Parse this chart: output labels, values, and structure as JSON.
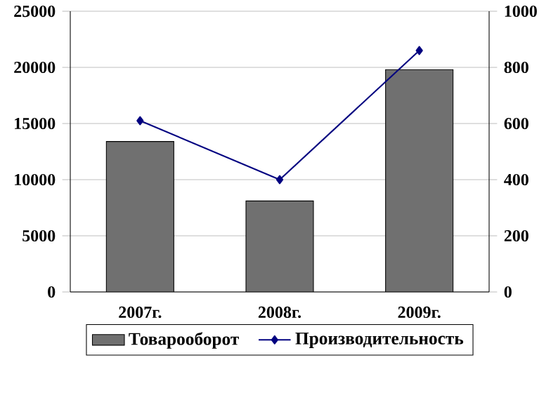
{
  "chart_data": {
    "type": "bar",
    "categories": [
      "2007г.",
      "2008г.",
      "2009г."
    ],
    "series": [
      {
        "name": "Товарооборот",
        "color": "#707070",
        "values": [
          13400,
          8100,
          19800
        ]
      },
      {
        "name": "Производительность",
        "type": "line",
        "axis": "y2",
        "color": "#000080",
        "marker": "diamond",
        "values": [
          610,
          400,
          860
        ]
      }
    ],
    "ylim": [
      0,
      25000
    ],
    "yticks": [
      0,
      5000,
      10000,
      15000,
      20000,
      25000
    ],
    "y2lim": [
      0,
      1000
    ],
    "y2ticks": [
      0,
      200,
      400,
      600,
      800,
      1000
    ],
    "grid": "y",
    "legend": "bottom"
  }
}
